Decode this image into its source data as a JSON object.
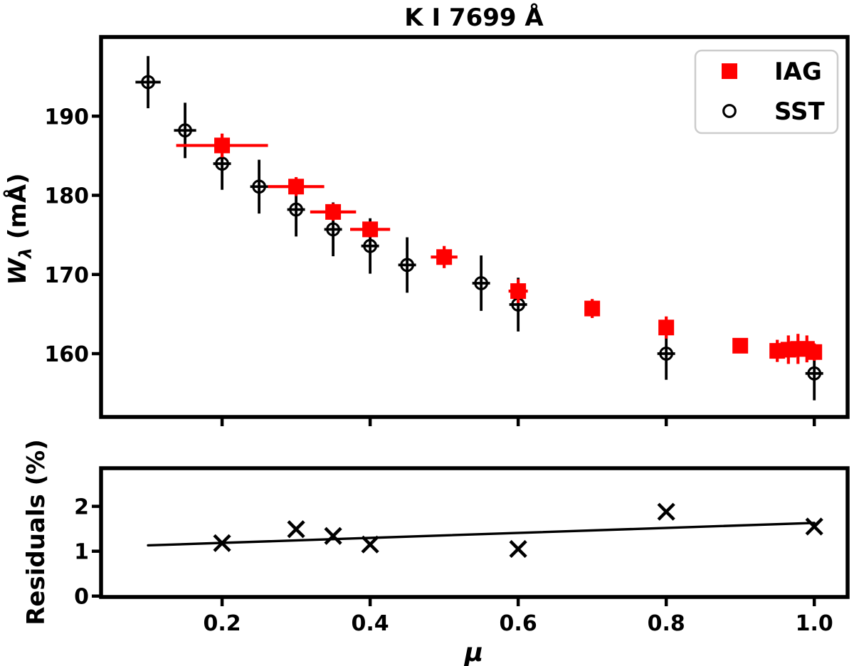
{
  "figure": {
    "title": "K I 7699 Å",
    "background": "#ffffff"
  },
  "colors": {
    "iag_red": "#ff0000",
    "axis_black": "#000000",
    "legend_border": "#cccccc"
  },
  "chart_data": [
    {
      "id": "main",
      "type": "scatter",
      "title": "K I 7699 Å",
      "ylabel_parts": {
        "symbol": "W",
        "subscript": "λ",
        "unit": " (mÅ)"
      },
      "xlim": [
        0.0365,
        1.045
      ],
      "ylim": [
        152,
        200
      ],
      "yticks": [
        160,
        170,
        180,
        190
      ],
      "ytick_labels": [
        "160",
        "170",
        "180",
        "190"
      ],
      "xticks": [
        0.2,
        0.4,
        0.6,
        0.8,
        1.0
      ],
      "xtick_labels": null,
      "grid": false,
      "legend": {
        "position": "upper right",
        "border_color": "#cccccc",
        "entries": [
          "IAG",
          "SST"
        ]
      },
      "series": [
        {
          "name": "IAG",
          "marker": "square",
          "color": "#ff0000",
          "zorder": 3,
          "points_format": [
            "mu",
            "W_mA",
            "yerr",
            "xerr"
          ],
          "points": [
            [
              0.2,
              186.3,
              1.5,
              0.062
            ],
            [
              0.3,
              181.1,
              1.2,
              0.038
            ],
            [
              0.35,
              177.9,
              1.1,
              0.031
            ],
            [
              0.4,
              175.7,
              1.0,
              0.027
            ],
            [
              0.5,
              172.2,
              1.4,
              0.018
            ],
            [
              0.6,
              167.9,
              1.5,
              0.013
            ],
            [
              0.7,
              165.7,
              1.2,
              0.01
            ],
            [
              0.8,
              163.3,
              1.4,
              0.01
            ],
            [
              0.9,
              161.0,
              0.9,
              0.008
            ],
            [
              0.95,
              160.35,
              1.4,
              0.006
            ],
            [
              0.965,
              160.5,
              1.8,
              0.006
            ],
            [
              0.978,
              160.6,
              1.9,
              0.006
            ],
            [
              0.99,
              160.6,
              1.7,
              0.006
            ],
            [
              1.0,
              160.2,
              1.1,
              0.008
            ]
          ]
        },
        {
          "name": "SST",
          "marker": "circle-open",
          "color": "#000000",
          "zorder": 2,
          "points_format": [
            "mu",
            "W_mA",
            "yerr",
            "xerr"
          ],
          "points": [
            [
              0.1,
              194.3,
              3.3,
              0.017
            ],
            [
              0.15,
              188.2,
              3.5,
              0.015
            ],
            [
              0.2,
              184.0,
              3.3,
              0.012
            ],
            [
              0.25,
              181.1,
              3.4,
              0.012
            ],
            [
              0.3,
              178.2,
              3.4,
              0.012
            ],
            [
              0.35,
              175.7,
              3.4,
              0.012
            ],
            [
              0.4,
              173.6,
              3.5,
              0.012
            ],
            [
              0.45,
              171.2,
              3.5,
              0.012
            ],
            [
              0.55,
              168.9,
              3.5,
              0.012
            ],
            [
              0.6,
              166.2,
              3.4,
              0.012
            ],
            [
              0.8,
              160.0,
              3.3,
              0.012
            ],
            [
              1.0,
              157.5,
              3.4,
              0.012
            ]
          ]
        }
      ]
    },
    {
      "id": "residuals",
      "type": "scatter",
      "ylabel": "Residuals (%)",
      "xlabel": "μ",
      "xlim": [
        0.0365,
        1.045
      ],
      "ylim": [
        -0.02,
        2.85
      ],
      "yticks": [
        0,
        1,
        2
      ],
      "ytick_labels": [
        "0",
        "1",
        "2"
      ],
      "xticks": [
        0.2,
        0.4,
        0.6,
        0.8,
        1.0
      ],
      "xtick_labels": [
        "0.2",
        "0.4",
        "0.6",
        "0.8",
        "1.0"
      ],
      "grid": false,
      "series": [
        {
          "name": "residuals",
          "marker": "x",
          "color": "#000000",
          "zorder": 3,
          "points_format": [
            "mu",
            "residual_pct"
          ],
          "points": [
            [
              0.2,
              1.18
            ],
            [
              0.3,
              1.49
            ],
            [
              0.35,
              1.34
            ],
            [
              0.4,
              1.15
            ],
            [
              0.6,
              1.05
            ],
            [
              0.8,
              1.88
            ],
            [
              1.0,
              1.55
            ]
          ]
        }
      ],
      "fit_line": {
        "x": [
          0.1,
          1.0
        ],
        "y": [
          1.13,
          1.63
        ]
      }
    }
  ]
}
